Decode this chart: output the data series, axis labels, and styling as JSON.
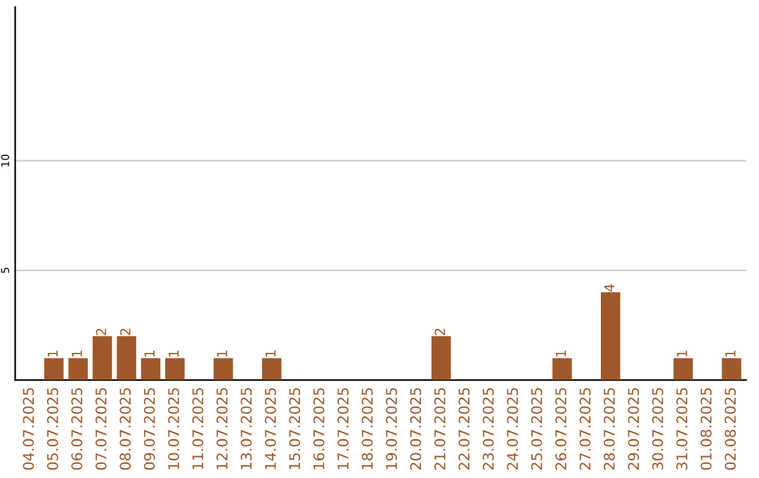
{
  "chart_data": {
    "type": "bar",
    "categories": [
      "04.07.2025",
      "05.07.2025",
      "06.07.2025",
      "07.07.2025",
      "08.07.2025",
      "09.07.2025",
      "10.07.2025",
      "11.07.2025",
      "12.07.2025",
      "13.07.2025",
      "14.07.2025",
      "15.07.2025",
      "16.07.2025",
      "17.07.2025",
      "18.07.2025",
      "19.07.2025",
      "20.07.2025",
      "21.07.2025",
      "22.07.2025",
      "23.07.2025",
      "24.07.2025",
      "25.07.2025",
      "26.07.2025",
      "27.07.2025",
      "28.07.2025",
      "29.07.2025",
      "30.07.2025",
      "31.07.2025",
      "01.08.2025",
      "02.08.2025"
    ],
    "values": [
      0,
      1,
      1,
      2,
      2,
      1,
      1,
      0,
      1,
      0,
      1,
      0,
      0,
      0,
      0,
      0,
      0,
      2,
      0,
      0,
      0,
      0,
      1,
      0,
      4,
      0,
      0,
      1,
      0,
      1
    ],
    "value_labels": [
      null,
      "1",
      "1",
      "2",
      "2",
      "1",
      "1",
      null,
      "1",
      null,
      "1",
      null,
      null,
      null,
      null,
      null,
      null,
      "2",
      null,
      null,
      null,
      null,
      "1",
      null,
      "4",
      null,
      null,
      "1",
      null,
      "1"
    ],
    "color": "#a0582a",
    "ylim": [
      0,
      17
    ],
    "yticks": [
      5,
      10
    ],
    "grid": "y"
  }
}
